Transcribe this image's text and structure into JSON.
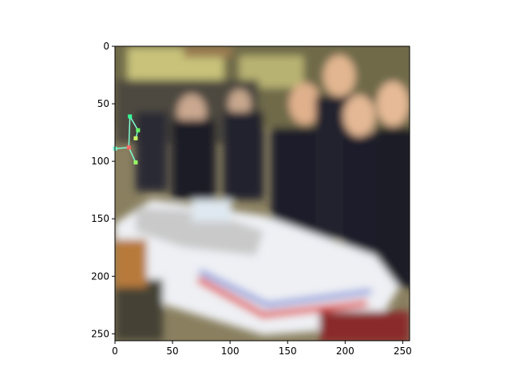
{
  "chart_data": {
    "type": "image",
    "title": "",
    "xlabel": "",
    "ylabel": "",
    "xlim": [
      0,
      256
    ],
    "ylim": [
      256,
      0
    ],
    "x_ticks": [
      0,
      50,
      100,
      150,
      200,
      250
    ],
    "y_ticks": [
      0,
      50,
      100,
      150,
      200,
      250
    ],
    "grid": false,
    "image_description": "blurred photo of officers in dark uniforms cutting a large aircraft-carrier shaped cake",
    "skeleton_overlay": {
      "line_color": "#7fffd4",
      "points": [
        {
          "x": 13,
          "y": 61,
          "color": "#33ff99"
        },
        {
          "x": 20,
          "y": 73,
          "color": "#66ff66"
        },
        {
          "x": 18,
          "y": 80,
          "color": "#ccff66"
        },
        {
          "x": 12,
          "y": 88,
          "color": "#ff6666"
        },
        {
          "x": 0,
          "y": 89,
          "color": "#7fffd4"
        },
        {
          "x": 18,
          "y": 101,
          "color": "#99ff66"
        }
      ],
      "edges": [
        [
          0,
          1
        ],
        [
          1,
          2
        ],
        [
          0,
          3
        ],
        [
          3,
          4
        ],
        [
          3,
          5
        ]
      ]
    }
  }
}
